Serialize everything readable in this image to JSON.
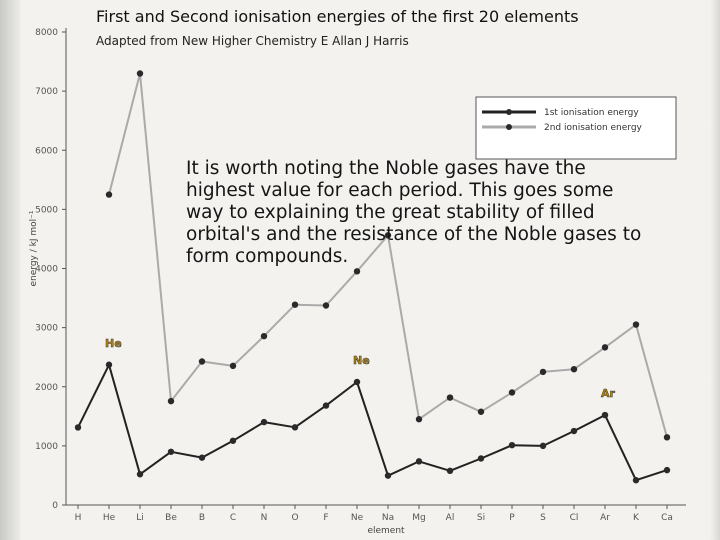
{
  "slide": {
    "title": "First and Second ionisation energies of the first 20 elements",
    "subtitle": "Adapted from New Higher Chemistry E Allan J Harris",
    "note": "It is worth noting the Noble gases have the highest value for each period. This goes some way to explaining the great stability of filled orbital's and the resistance of the Noble gases to form compounds."
  },
  "chart_data": {
    "type": "line",
    "categories": [
      "H",
      "He",
      "Li",
      "Be",
      "B",
      "C",
      "N",
      "O",
      "F",
      "Ne",
      "Na",
      "Mg",
      "Al",
      "Si",
      "P",
      "S",
      "Cl",
      "Ar",
      "K",
      "Ca"
    ],
    "series": [
      {
        "name": "1st ionisation energy",
        "color": "#222222",
        "values": [
          1312,
          2372,
          520,
          900,
          801,
          1086,
          1402,
          1314,
          1681,
          2081,
          496,
          738,
          578,
          787,
          1012,
          1000,
          1251,
          1521,
          419,
          590
        ]
      },
      {
        "name": "2nd ionisation energy",
        "color": "#aaaaaa",
        "values": [
          null,
          5250,
          7298,
          1757,
          2427,
          2353,
          2856,
          3388,
          3374,
          3952,
          4562,
          1451,
          1817,
          1577,
          1903,
          2251,
          2297,
          2666,
          3052,
          1145
        ]
      }
    ],
    "xlabel": "element",
    "ylabel": "energy / kJ mol⁻¹",
    "ylim": [
      0,
      8000
    ],
    "yticks": [
      0,
      1000,
      2000,
      3000,
      4000,
      5000,
      6000,
      7000,
      8000
    ],
    "grid": false,
    "legend_position": "top-right",
    "annotations": [
      {
        "text": "He",
        "category": "He",
        "color": "#b8860b"
      },
      {
        "text": "Ne",
        "category": "Ne",
        "color": "#b8860b"
      },
      {
        "text": "Ar",
        "category": "Ar",
        "color": "#b8860b"
      }
    ]
  }
}
